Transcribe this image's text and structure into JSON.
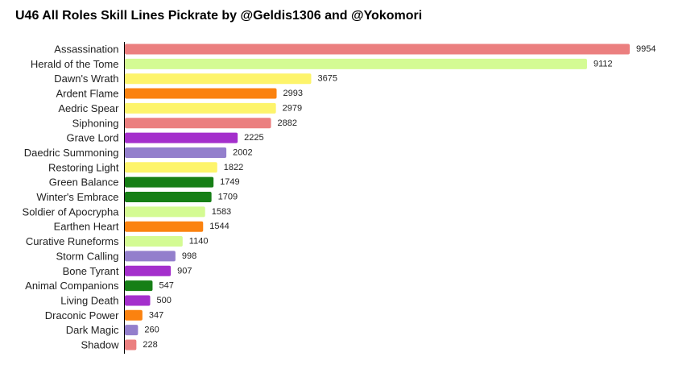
{
  "chart_data": {
    "type": "bar",
    "orientation": "horizontal",
    "title": "U46 All Roles Skill Lines Pickrate by @Geldis1306 and @Yokomori",
    "xlabel": "",
    "ylabel": "",
    "xlim": [
      0,
      9954
    ],
    "grid": false,
    "legend": "none",
    "categories": [
      "Assassination",
      "Herald of the Tome",
      "Dawn's Wrath",
      "Ardent Flame",
      "Aedric Spear",
      "Siphoning",
      "Grave Lord",
      "Daedric Summoning",
      "Restoring Light",
      "Green Balance",
      "Winter's Embrace",
      "Soldier of Apocrypha",
      "Earthen Heart",
      "Curative Runeforms",
      "Storm Calling",
      "Bone Tyrant",
      "Animal Companions",
      "Living Death",
      "Draconic Power",
      "Dark Magic",
      "Shadow"
    ],
    "values": [
      9954,
      9112,
      3675,
      2993,
      2979,
      2882,
      2225,
      2002,
      1822,
      1749,
      1709,
      1583,
      1544,
      1140,
      998,
      907,
      547,
      500,
      347,
      260,
      228
    ],
    "colors": [
      "#eb7f7f",
      "#d4fb93",
      "#fdf46b",
      "#fb820f",
      "#fdf46b",
      "#eb7f7f",
      "#a42fcc",
      "#937fcc",
      "#fdf46b",
      "#167f16",
      "#167f16",
      "#d4fb93",
      "#fb820f",
      "#d4fb93",
      "#937fcc",
      "#a42fcc",
      "#167f16",
      "#a42fcc",
      "#fb820f",
      "#937fcc",
      "#eb7f7f"
    ]
  }
}
